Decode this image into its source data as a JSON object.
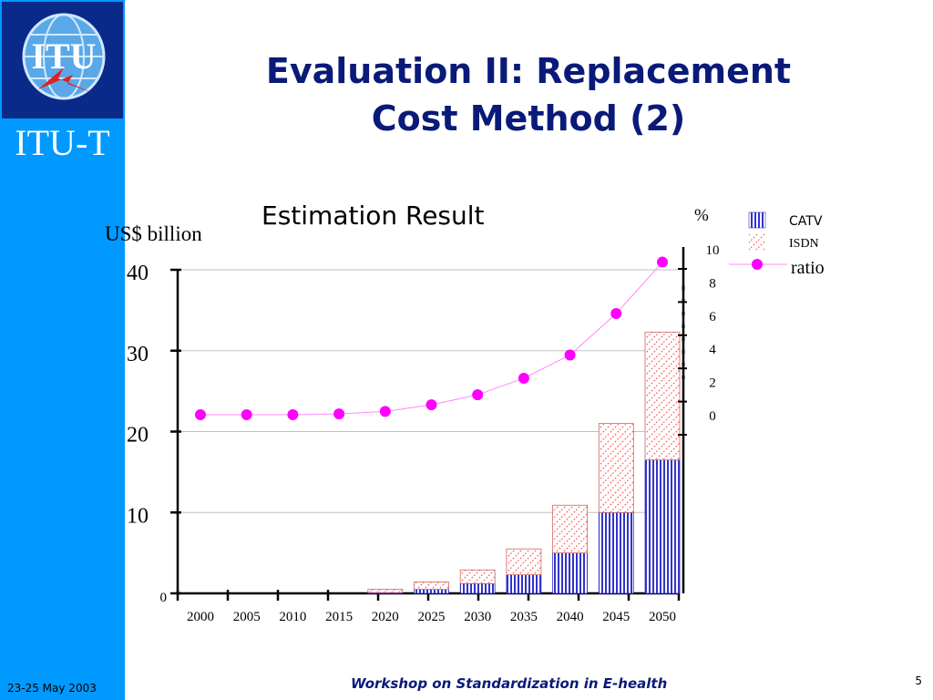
{
  "brand": "ITU-T",
  "logo_text": "ITU",
  "slide_title_line1": "Evaluation II: Replacement",
  "slide_title_line2": "Cost Method (2)",
  "footer": {
    "date": "23-25 May 2003",
    "title": "Workshop on Standardization in E-health",
    "page": "5"
  },
  "colors": {
    "sidebar": "#0099ff",
    "title": "#0a1a78",
    "catv": "#3333cc",
    "isdn": "#ff6666",
    "ratio": "#ff00ff"
  },
  "chart_data": {
    "type": "bar",
    "title": "Estimation Result",
    "ylabel": "US$ billion",
    "y2label": "%",
    "categories": [
      "2000",
      "2005",
      "2010",
      "2015",
      "2020",
      "2025",
      "2030",
      "2035",
      "2040",
      "2045",
      "2050"
    ],
    "x_tick_labels": [
      "2000",
      "2005",
      "2010",
      "2015",
      "2020",
      "2025",
      "2030",
      "2035",
      "2040",
      "2045",
      "2050"
    ],
    "ylim": [
      0,
      40
    ],
    "yticks": [
      "0",
      "10",
      "20",
      "30",
      "40"
    ],
    "y2lim": [
      0,
      10
    ],
    "y2ticks": [
      "0",
      "2",
      "4",
      "6",
      "8",
      "10"
    ],
    "series": [
      {
        "name": "CATV",
        "type": "stacked-bar",
        "axis": "left",
        "values": [
          0,
          0,
          0,
          0,
          0.1,
          0.5,
          1.2,
          2.3,
          5.0,
          10.0,
          16.5
        ]
      },
      {
        "name": "ISDN",
        "type": "stacked-bar",
        "axis": "left",
        "values": [
          0,
          0,
          0,
          0,
          0.4,
          0.9,
          1.7,
          3.2,
          5.9,
          11.0,
          15.8
        ]
      },
      {
        "name": "ratio",
        "type": "line",
        "axis": "right",
        "values": [
          0,
          0,
          0,
          0.05,
          0.2,
          0.6,
          1.2,
          2.2,
          3.6,
          6.1,
          9.2
        ]
      }
    ],
    "grid": true,
    "legend": "right"
  }
}
